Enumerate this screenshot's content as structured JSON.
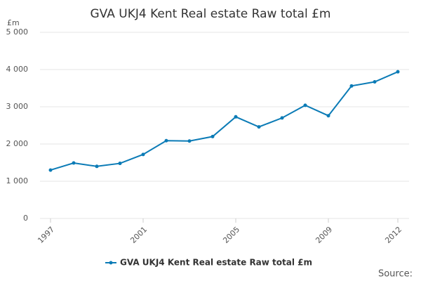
{
  "chart_data": {
    "type": "line",
    "title": "GVA UKJ4 Kent Real estate Raw total £m",
    "y_label": "£m",
    "source": "Source:",
    "x": [
      1997,
      1998,
      1999,
      2000,
      2001,
      2002,
      2003,
      2004,
      2005,
      2006,
      2007,
      2008,
      2009,
      2010,
      2011,
      2012
    ],
    "series": [
      {
        "name": "GVA UKJ4 Kent Real estate Raw total £m",
        "color": "#0b7bb6",
        "values": [
          1300,
          1490,
          1400,
          1480,
          1720,
          2090,
          2080,
          2200,
          2730,
          2460,
          2700,
          3040,
          2760,
          3560,
          3670,
          3940
        ]
      }
    ],
    "xlim": [
      1997,
      2012
    ],
    "xticks": [
      1997,
      2001,
      2005,
      2009,
      2012
    ],
    "ylim": [
      0,
      5000
    ],
    "yticks": [
      0,
      {
        "value": 1000,
        "label": "1 000"
      },
      {
        "value": 2000,
        "label": "2 000"
      },
      {
        "value": 3000,
        "label": "3 000"
      },
      {
        "value": 4000,
        "label": "4 000"
      },
      {
        "value": 5000,
        "label": "5 000"
      }
    ],
    "grid": true,
    "legend": "bottom"
  }
}
